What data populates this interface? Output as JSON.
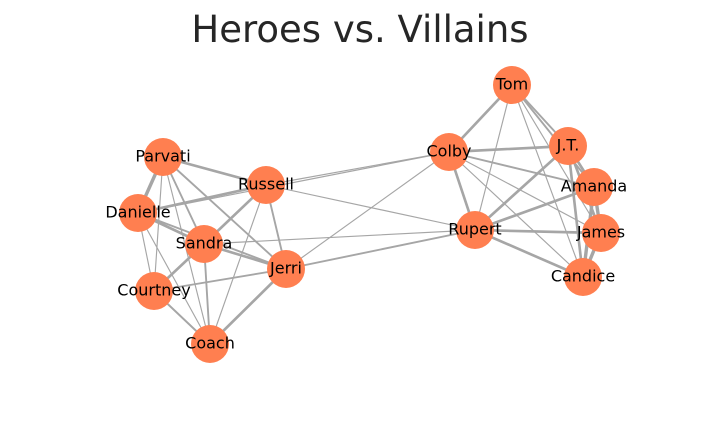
{
  "title": "Heroes vs. Villains",
  "colors": {
    "node": "#ff7f50",
    "edge": "#a6a6a6",
    "label": "#000000",
    "title": "#262626"
  },
  "graph": {
    "nodes": [
      {
        "id": "Tom"
      },
      {
        "id": "J.T."
      },
      {
        "id": "Colby"
      },
      {
        "id": "Amanda"
      },
      {
        "id": "Rupert"
      },
      {
        "id": "James"
      },
      {
        "id": "Candice"
      },
      {
        "id": "Parvati"
      },
      {
        "id": "Russell"
      },
      {
        "id": "Danielle"
      },
      {
        "id": "Sandra"
      },
      {
        "id": "Jerri"
      },
      {
        "id": "Courtney"
      },
      {
        "id": "Coach"
      }
    ],
    "edges": [
      {
        "source": "Tom",
        "target": "Colby",
        "weight": 3
      },
      {
        "source": "Tom",
        "target": "J.T.",
        "weight": 2
      },
      {
        "source": "Tom",
        "target": "Amanda",
        "weight": 2
      },
      {
        "source": "Tom",
        "target": "Rupert",
        "weight": 1
      },
      {
        "source": "Tom",
        "target": "James",
        "weight": 1
      },
      {
        "source": "Tom",
        "target": "Candice",
        "weight": 1
      },
      {
        "source": "Colby",
        "target": "J.T.",
        "weight": 3
      },
      {
        "source": "Colby",
        "target": "Amanda",
        "weight": 2
      },
      {
        "source": "Colby",
        "target": "Rupert",
        "weight": 3
      },
      {
        "source": "Colby",
        "target": "James",
        "weight": 1
      },
      {
        "source": "Colby",
        "target": "Candice",
        "weight": 1
      },
      {
        "source": "J.T.",
        "target": "Amanda",
        "weight": 3
      },
      {
        "source": "J.T.",
        "target": "Rupert",
        "weight": 3
      },
      {
        "source": "J.T.",
        "target": "James",
        "weight": 3
      },
      {
        "source": "J.T.",
        "target": "Candice",
        "weight": 3
      },
      {
        "source": "Amanda",
        "target": "Rupert",
        "weight": 3
      },
      {
        "source": "Amanda",
        "target": "James",
        "weight": 4
      },
      {
        "source": "Amanda",
        "target": "Candice",
        "weight": 4
      },
      {
        "source": "Rupert",
        "target": "James",
        "weight": 3
      },
      {
        "source": "Rupert",
        "target": "Candice",
        "weight": 3
      },
      {
        "source": "James",
        "target": "Candice",
        "weight": 4
      },
      {
        "source": "Parvati",
        "target": "Danielle",
        "weight": 4
      },
      {
        "source": "Parvati",
        "target": "Russell",
        "weight": 3
      },
      {
        "source": "Parvati",
        "target": "Sandra",
        "weight": 2
      },
      {
        "source": "Parvati",
        "target": "Jerri",
        "weight": 2
      },
      {
        "source": "Parvati",
        "target": "Courtney",
        "weight": 1
      },
      {
        "source": "Parvati",
        "target": "Coach",
        "weight": 1
      },
      {
        "source": "Danielle",
        "target": "Russell",
        "weight": 3
      },
      {
        "source": "Danielle",
        "target": "Sandra",
        "weight": 3
      },
      {
        "source": "Danielle",
        "target": "Jerri",
        "weight": 2
      },
      {
        "source": "Danielle",
        "target": "Courtney",
        "weight": 1
      },
      {
        "source": "Danielle",
        "target": "Coach",
        "weight": 1
      },
      {
        "source": "Russell",
        "target": "Sandra",
        "weight": 3
      },
      {
        "source": "Russell",
        "target": "Jerri",
        "weight": 2
      },
      {
        "source": "Russell",
        "target": "Courtney",
        "weight": 1
      },
      {
        "source": "Russell",
        "target": "Coach",
        "weight": 1
      },
      {
        "source": "Sandra",
        "target": "Jerri",
        "weight": 3
      },
      {
        "source": "Sandra",
        "target": "Courtney",
        "weight": 3
      },
      {
        "source": "Sandra",
        "target": "Coach",
        "weight": 2
      },
      {
        "source": "Jerri",
        "target": "Courtney",
        "weight": 2
      },
      {
        "source": "Jerri",
        "target": "Coach",
        "weight": 3
      },
      {
        "source": "Courtney",
        "target": "Coach",
        "weight": 2
      },
      {
        "source": "Russell",
        "target": "Colby",
        "weight": 1
      },
      {
        "source": "Russell",
        "target": "Rupert",
        "weight": 1
      },
      {
        "source": "Danielle",
        "target": "Colby",
        "weight": 1
      },
      {
        "source": "Sandra",
        "target": "Rupert",
        "weight": 1
      },
      {
        "source": "Jerri",
        "target": "Rupert",
        "weight": 2
      },
      {
        "source": "Jerri",
        "target": "Colby",
        "weight": 1
      }
    ]
  }
}
